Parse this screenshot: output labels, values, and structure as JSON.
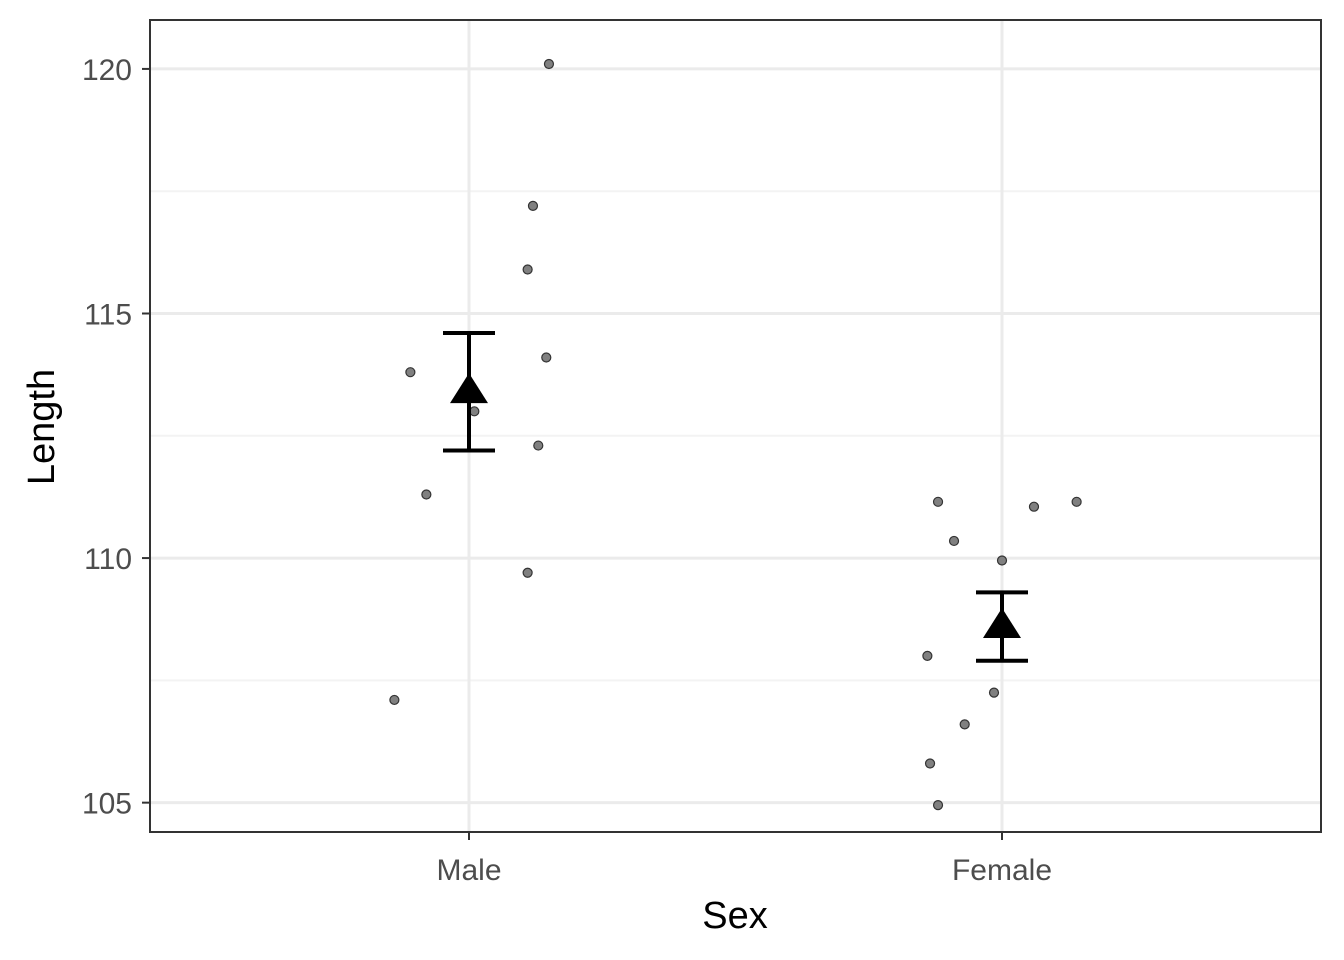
{
  "chart_data": {
    "type": "scatter",
    "title": "",
    "xlabel": "Sex",
    "ylabel": "Length",
    "categories": [
      "Male",
      "Female"
    ],
    "ylim": [
      104.4,
      121.0
    ],
    "y_ticks": [
      105,
      110,
      115,
      120
    ],
    "y_minor_ticks": [
      107.5,
      112.5,
      117.5
    ],
    "grid": true,
    "legend": "none",
    "points": [
      {
        "category": "Male",
        "jitter": -0.14,
        "y": 107.1
      },
      {
        "category": "Male",
        "jitter": -0.11,
        "y": 113.8
      },
      {
        "category": "Male",
        "jitter": -0.08,
        "y": 111.3
      },
      {
        "category": "Male",
        "jitter": 0.01,
        "y": 113.0
      },
      {
        "category": "Male",
        "jitter": 0.11,
        "y": 109.7
      },
      {
        "category": "Male",
        "jitter": 0.11,
        "y": 115.9
      },
      {
        "category": "Male",
        "jitter": 0.12,
        "y": 117.2
      },
      {
        "category": "Male",
        "jitter": 0.13,
        "y": 112.3
      },
      {
        "category": "Male",
        "jitter": 0.145,
        "y": 114.1
      },
      {
        "category": "Male",
        "jitter": 0.15,
        "y": 120.1
      },
      {
        "category": "Female",
        "jitter": -0.14,
        "y": 108.0
      },
      {
        "category": "Female",
        "jitter": -0.135,
        "y": 105.8
      },
      {
        "category": "Female",
        "jitter": -0.12,
        "y": 104.95
      },
      {
        "category": "Female",
        "jitter": -0.12,
        "y": 111.15
      },
      {
        "category": "Female",
        "jitter": -0.09,
        "y": 110.35
      },
      {
        "category": "Female",
        "jitter": -0.07,
        "y": 106.6
      },
      {
        "category": "Female",
        "jitter": -0.015,
        "y": 107.25
      },
      {
        "category": "Female",
        "jitter": 0.0,
        "y": 109.95
      },
      {
        "category": "Female",
        "jitter": 0.06,
        "y": 111.05
      },
      {
        "category": "Female",
        "jitter": 0.14,
        "y": 111.15
      }
    ],
    "summary": [
      {
        "category": "Male",
        "mean": 113.4,
        "lower": 112.2,
        "upper": 114.6
      },
      {
        "category": "Female",
        "mean": 108.6,
        "lower": 107.9,
        "upper": 109.3
      }
    ],
    "colors": {
      "point_fill": "#808080",
      "point_stroke": "#333333",
      "summary": "#000000",
      "grid_major": "#ebebeb",
      "grid_minor": "#f3f3f3",
      "panel_border": "#333333"
    }
  }
}
